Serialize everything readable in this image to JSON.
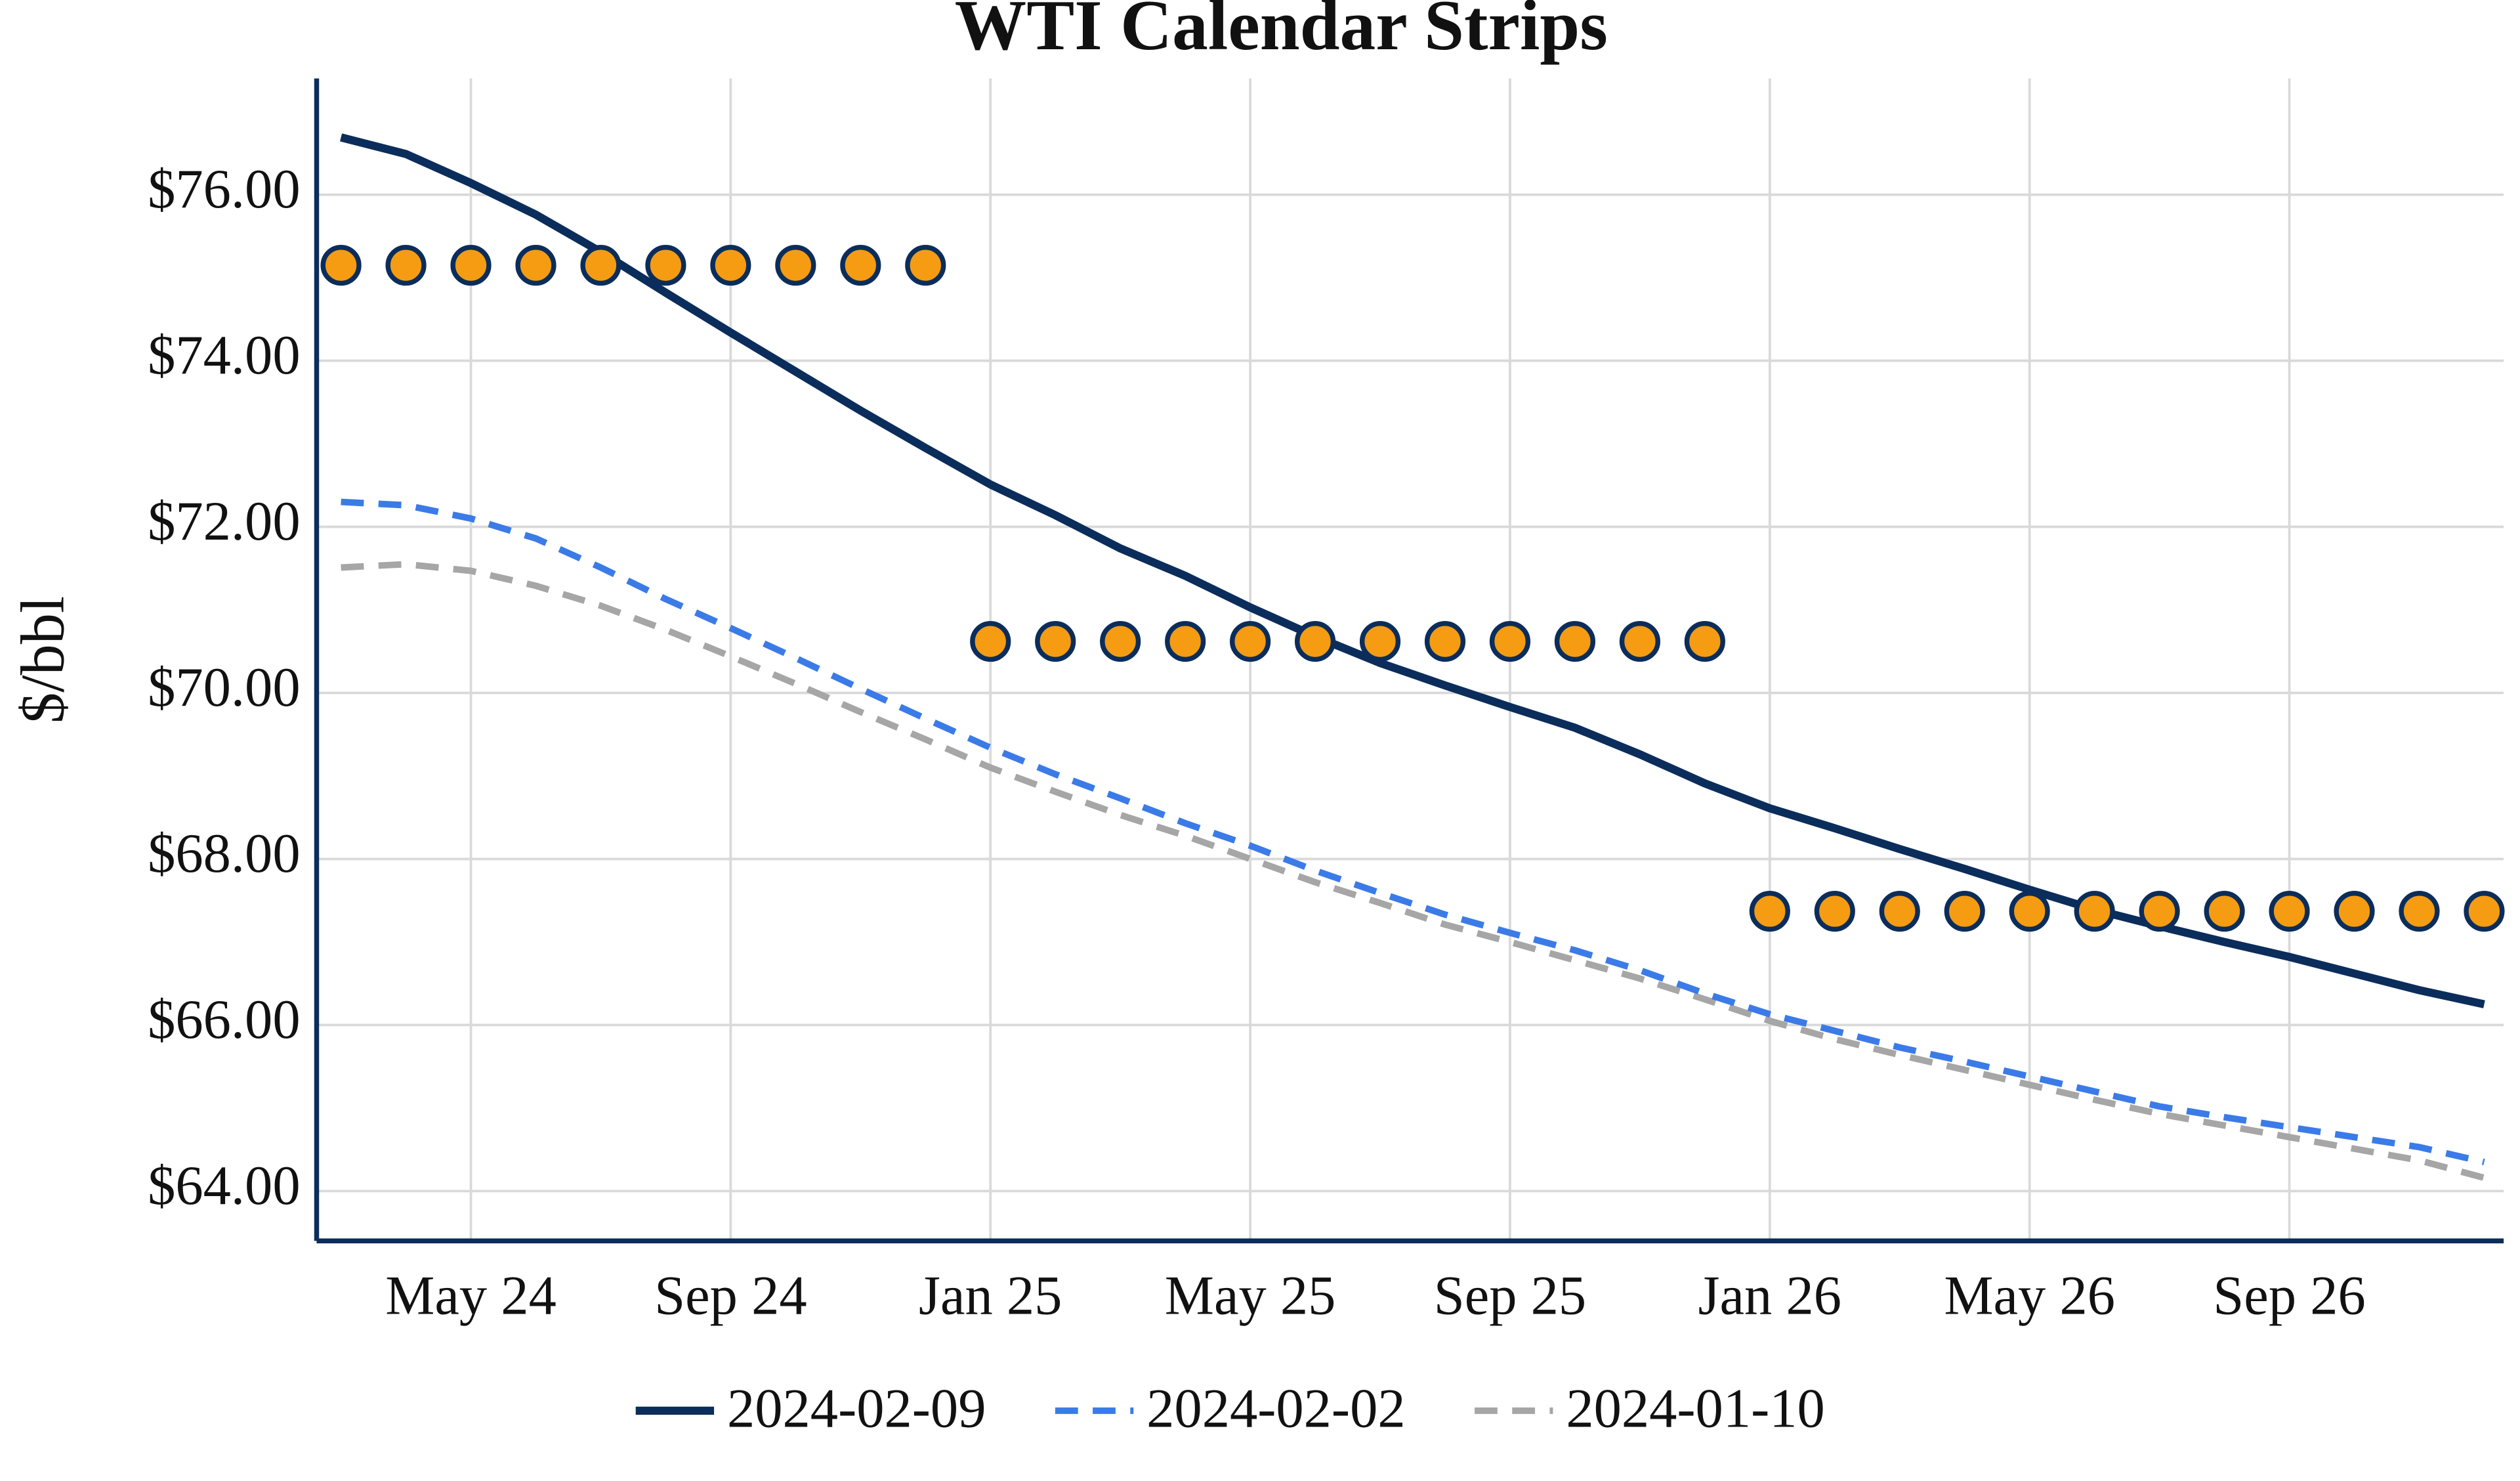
{
  "chart_data": {
    "type": "line",
    "title": "WTI Calendar Strips",
    "y_label": "$/bbl",
    "x": [
      "2024-03",
      "2024-04",
      "2024-05",
      "2024-06",
      "2024-07",
      "2024-08",
      "2024-09",
      "2024-10",
      "2024-11",
      "2024-12",
      "2025-01",
      "2025-02",
      "2025-03",
      "2025-04",
      "2025-05",
      "2025-06",
      "2025-07",
      "2025-08",
      "2025-09",
      "2025-10",
      "2025-11",
      "2025-12",
      "2026-01",
      "2026-02",
      "2026-03",
      "2026-04",
      "2026-05",
      "2026-06",
      "2026-07",
      "2026-08",
      "2026-09",
      "2026-10",
      "2026-11",
      "2026-12"
    ],
    "xticks": [
      {
        "value": "2024-05",
        "label": "May 24"
      },
      {
        "value": "2024-09",
        "label": "Sep 24"
      },
      {
        "value": "2025-01",
        "label": "Jan 25"
      },
      {
        "value": "2025-05",
        "label": "May 25"
      },
      {
        "value": "2025-09",
        "label": "Sep 25"
      },
      {
        "value": "2026-01",
        "label": "Jan 26"
      },
      {
        "value": "2026-05",
        "label": "May 26"
      },
      {
        "value": "2026-09",
        "label": "Sep 26"
      }
    ],
    "ylim": [
      63.4,
      77.4
    ],
    "yticks": [
      {
        "value": 64,
        "label": "$64.00"
      },
      {
        "value": 66,
        "label": "$66.00"
      },
      {
        "value": 68,
        "label": "$68.00"
      },
      {
        "value": 70,
        "label": "$70.00"
      },
      {
        "value": 72,
        "label": "$72.00"
      },
      {
        "value": 74,
        "label": "$74.00"
      },
      {
        "value": 76,
        "label": "$76.00"
      }
    ],
    "grid": true,
    "legend": "bottom",
    "series": [
      {
        "name": "2024-02-09",
        "color": "#0b2d5b",
        "dash": "solid",
        "values": [
          76.69,
          76.49,
          76.14,
          75.76,
          75.31,
          74.82,
          74.34,
          73.87,
          73.4,
          72.95,
          72.51,
          72.14,
          71.74,
          71.41,
          71.03,
          70.68,
          70.36,
          70.09,
          69.83,
          69.58,
          69.26,
          68.91,
          68.61,
          68.37,
          68.12,
          67.88,
          67.63,
          67.39,
          67.19,
          67.0,
          66.82,
          66.62,
          66.42,
          66.25
        ]
      },
      {
        "name": "2024-02-02",
        "color": "#3b7be8",
        "dash": "dashed",
        "values": [
          72.3,
          72.26,
          72.1,
          71.86,
          71.51,
          71.13,
          70.78,
          70.42,
          70.05,
          69.69,
          69.34,
          69.02,
          68.73,
          68.43,
          68.16,
          67.86,
          67.59,
          67.33,
          67.11,
          66.9,
          66.66,
          66.38,
          66.13,
          65.93,
          65.73,
          65.56,
          65.38,
          65.2,
          65.02,
          64.89,
          64.77,
          64.65,
          64.53,
          64.35
        ]
      },
      {
        "name": "2024-01-10",
        "color": "#a6a6a6",
        "dash": "dashed",
        "values": [
          71.51,
          71.55,
          71.47,
          71.29,
          71.05,
          70.76,
          70.44,
          70.11,
          69.77,
          69.44,
          69.1,
          68.81,
          68.53,
          68.28,
          68.0,
          67.72,
          67.47,
          67.21,
          67.0,
          66.78,
          66.56,
          66.31,
          66.05,
          65.83,
          65.64,
          65.46,
          65.28,
          65.1,
          64.93,
          64.79,
          64.65,
          64.51,
          64.37,
          64.16
        ]
      }
    ],
    "markers": {
      "color": "#f59c12",
      "edge": "#0b2d5b",
      "values": [
        75.15,
        75.15,
        75.15,
        75.15,
        75.15,
        75.15,
        75.15,
        75.15,
        75.15,
        75.15,
        70.62,
        70.62,
        70.62,
        70.62,
        70.62,
        70.62,
        70.62,
        70.62,
        70.62,
        70.62,
        70.62,
        70.62,
        67.37,
        67.37,
        67.37,
        67.37,
        67.37,
        67.37,
        67.37,
        67.37,
        67.37,
        67.37,
        67.37,
        67.37
      ]
    }
  }
}
